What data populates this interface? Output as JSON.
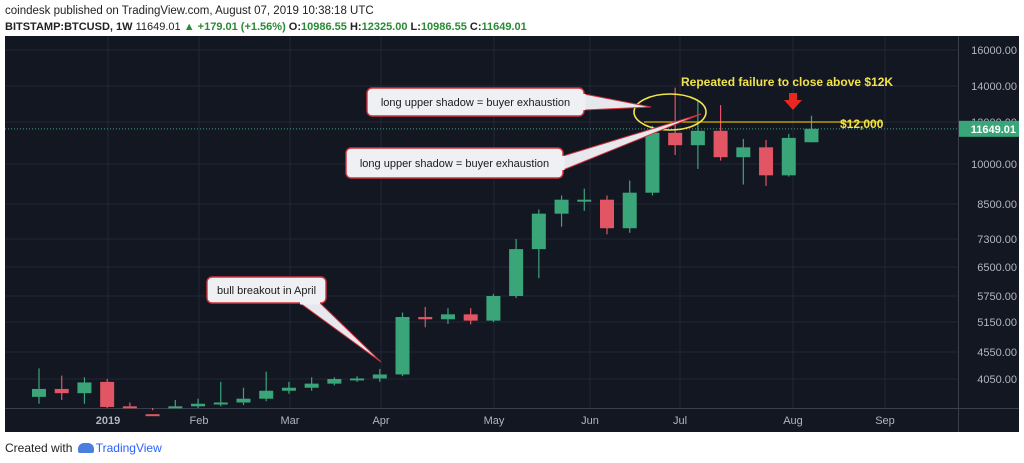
{
  "header": {
    "publisher": "coindesk",
    "published_text": "published on TradingView.com, August 07, 2019 10:38:18 UTC",
    "symbol": "BITSTAMP:BTCUSD, 1W",
    "price": "11649.01",
    "change": "▲ +179.01 (+1.56%)",
    "open_label": "O:",
    "open": "10986.55",
    "high_label": "H:",
    "high": "12325.00",
    "low_label": "L:",
    "low": "10986.55",
    "close_label": "C:",
    "close": "11649.01"
  },
  "footer": {
    "created_with": "Created with",
    "brand": "TradingView"
  },
  "colors": {
    "up": "#3ba57a",
    "down": "#e15564",
    "background": "#131722",
    "grid": "#232734",
    "text": "#b2b5be",
    "annotation": "#f2e34a",
    "arrow": "#e8281f"
  },
  "chart_data": {
    "type": "candlestick",
    "x_axis_labels": [
      "2019",
      "Feb",
      "Mar",
      "Apr",
      "May",
      "Jun",
      "Jul",
      "Aug",
      "Sep"
    ],
    "y_axis_labels": [
      "16000.00",
      "14000.00",
      "12000.00",
      "10000.00",
      "8500.00",
      "7300.00",
      "6500.00",
      "5750.00",
      "5150.00",
      "4550.00",
      "4050.00"
    ],
    "y_axis_scale": "log",
    "current_price_label": "11649.01",
    "level_label": "$12,000",
    "candles": [
      {
        "week": "2018-12-24",
        "open": 3750,
        "high": 4240,
        "low": 3640,
        "close": 3880
      },
      {
        "week": "2018-12-31",
        "open": 3880,
        "high": 4110,
        "low": 3700,
        "close": 3810
      },
      {
        "week": "2019-01-07",
        "open": 3810,
        "high": 4080,
        "low": 3640,
        "close": 3990
      },
      {
        "week": "2019-01-14",
        "open": 4000,
        "high": 4050,
        "low": 3550,
        "close": 3590
      },
      {
        "week": "2019-01-21",
        "open": 3600,
        "high": 3660,
        "low": 3420,
        "close": 3480
      },
      {
        "week": "2019-01-28",
        "open": 3480,
        "high": 3540,
        "low": 3350,
        "close": 3420
      },
      {
        "week": "2019-02-04",
        "open": 3420,
        "high": 3700,
        "low": 3380,
        "close": 3600
      },
      {
        "week": "2019-02-11",
        "open": 3600,
        "high": 3720,
        "low": 3560,
        "close": 3640
      },
      {
        "week": "2019-02-18",
        "open": 3640,
        "high": 4000,
        "low": 3600,
        "close": 3660
      },
      {
        "week": "2019-02-25",
        "open": 3660,
        "high": 3900,
        "low": 3620,
        "close": 3720
      },
      {
        "week": "2019-03-04",
        "open": 3720,
        "high": 4180,
        "low": 3680,
        "close": 3850
      },
      {
        "week": "2019-03-11",
        "open": 3850,
        "high": 4000,
        "low": 3800,
        "close": 3900
      },
      {
        "week": "2019-03-18",
        "open": 3900,
        "high": 4080,
        "low": 3850,
        "close": 3970
      },
      {
        "week": "2019-03-25",
        "open": 3970,
        "high": 4080,
        "low": 3940,
        "close": 4050
      },
      {
        "week": "2019-04-01",
        "open": 4050,
        "high": 4100,
        "low": 4000,
        "close": 4060
      },
      {
        "week": "2019-04-08",
        "open": 4060,
        "high": 4230,
        "low": 4000,
        "close": 4130
      },
      {
        "week": "2019-04-15",
        "open": 4130,
        "high": 5360,
        "low": 4100,
        "close": 5260
      },
      {
        "week": "2019-04-22",
        "open": 5260,
        "high": 5490,
        "low": 5040,
        "close": 5210
      },
      {
        "week": "2019-04-29",
        "open": 5210,
        "high": 5460,
        "low": 5110,
        "close": 5320
      },
      {
        "week": "2019-05-06",
        "open": 5320,
        "high": 5460,
        "low": 5100,
        "close": 5180
      },
      {
        "week": "2019-05-13",
        "open": 5180,
        "high": 5800,
        "low": 5150,
        "close": 5750
      },
      {
        "week": "2019-05-20",
        "open": 5750,
        "high": 7300,
        "low": 5700,
        "close": 7000
      },
      {
        "week": "2019-05-27",
        "open": 7000,
        "high": 8300,
        "low": 6200,
        "close": 8150
      },
      {
        "week": "2019-06-03",
        "open": 8150,
        "high": 8800,
        "low": 7700,
        "close": 8650
      },
      {
        "week": "2019-06-10",
        "open": 8650,
        "high": 9050,
        "low": 8250,
        "close": 8650
      },
      {
        "week": "2019-06-17",
        "open": 8650,
        "high": 8800,
        "low": 7450,
        "close": 7650
      },
      {
        "week": "2019-06-24",
        "open": 7650,
        "high": 9350,
        "low": 7500,
        "close": 8900
      },
      {
        "week": "2019-07-01",
        "open": 8900,
        "high": 11800,
        "low": 8800,
        "close": 11450
      },
      {
        "week": "2019-07-08",
        "open": 11450,
        "high": 13900,
        "low": 10400,
        "close": 10850
      },
      {
        "week": "2019-07-15",
        "open": 10850,
        "high": 13200,
        "low": 9800,
        "close": 11550
      },
      {
        "week": "2019-07-22",
        "open": 11550,
        "high": 12900,
        "low": 10150,
        "close": 10300
      },
      {
        "week": "2019-07-29",
        "open": 10300,
        "high": 11150,
        "low": 9200,
        "close": 10750
      },
      {
        "week": "2019-08-05",
        "open": 10750,
        "high": 11100,
        "low": 9150,
        "close": 9550
      },
      {
        "week": "2019-08-12",
        "open": 9550,
        "high": 11400,
        "low": 9500,
        "close": 11200
      },
      {
        "week": "2019-08-19",
        "open": 10990,
        "high": 12325,
        "low": 10990,
        "close": 11649
      }
    ],
    "annotations": [
      "long upper shadow = buyer exhaustion",
      "long upper shadow = buyer exhaustion",
      "bull breakout in April",
      "Repeated failure to close above $12K"
    ]
  }
}
